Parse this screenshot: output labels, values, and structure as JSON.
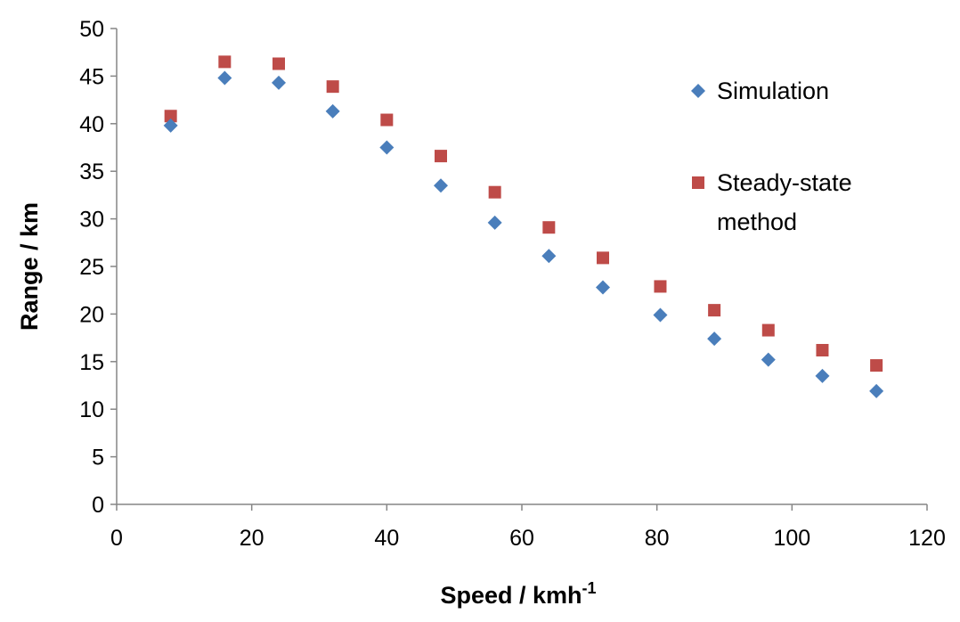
{
  "chart_data": {
    "type": "scatter",
    "title": "",
    "xlabel": "Speed / kmh",
    "xlabel_superscript": "-1",
    "ylabel": "Range / km",
    "xlim": [
      0,
      120
    ],
    "ylim": [
      0,
      50
    ],
    "x_ticks": [
      "0",
      "20",
      "40",
      "60",
      "80",
      "100",
      "120"
    ],
    "y_ticks": [
      "0",
      "5",
      "10",
      "15",
      "20",
      "25",
      "30",
      "35",
      "40",
      "45",
      "50"
    ],
    "grid": false,
    "legend_position": "right",
    "series": [
      {
        "name": "Simulation",
        "marker": "diamond",
        "color": "#4a7ebb",
        "points": [
          [
            8,
            39.8
          ],
          [
            16,
            44.8
          ],
          [
            24,
            44.3
          ],
          [
            32,
            41.3
          ],
          [
            40,
            37.5
          ],
          [
            48,
            33.5
          ],
          [
            56,
            29.6
          ],
          [
            64,
            26.1
          ],
          [
            72,
            22.8
          ],
          [
            80.5,
            19.9
          ],
          [
            88.5,
            17.4
          ],
          [
            96.5,
            15.2
          ],
          [
            104.5,
            13.5
          ],
          [
            112.5,
            11.9
          ]
        ]
      },
      {
        "name": "Steady-state method",
        "marker": "square",
        "color": "#be4b48",
        "points": [
          [
            8,
            40.8
          ],
          [
            16,
            46.5
          ],
          [
            24,
            46.3
          ],
          [
            32,
            43.9
          ],
          [
            40,
            40.4
          ],
          [
            48,
            36.6
          ],
          [
            56,
            32.8
          ],
          [
            64,
            29.1
          ],
          [
            72,
            25.9
          ],
          [
            80.5,
            22.9
          ],
          [
            88.5,
            20.4
          ],
          [
            96.5,
            18.3
          ],
          [
            104.5,
            16.2
          ],
          [
            112.5,
            14.6
          ]
        ]
      }
    ]
  },
  "legend": {
    "items": [
      {
        "lines": [
          "Simulation"
        ]
      },
      {
        "lines": [
          "Steady-state",
          "method"
        ]
      }
    ]
  }
}
